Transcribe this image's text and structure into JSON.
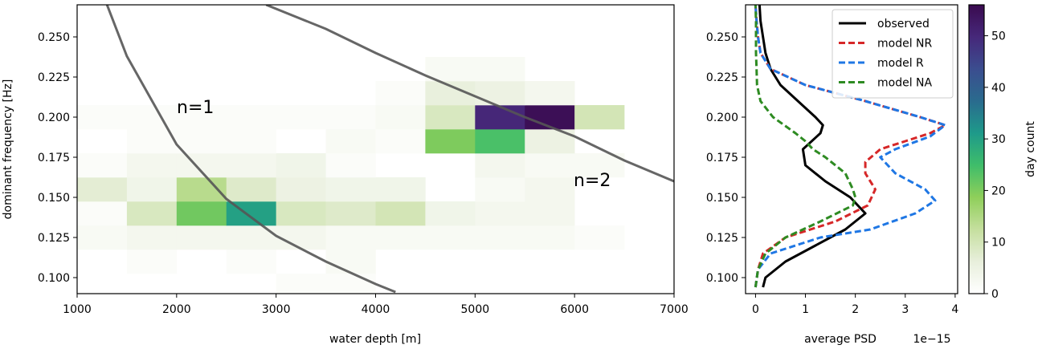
{
  "chart_data": [
    {
      "type": "heatmap",
      "xlabel": "water depth [m]",
      "ylabel": "dominant frequency [Hz]",
      "xlim": [
        1000,
        7000
      ],
      "ylim": [
        0.09,
        0.27
      ],
      "xticks": [
        1000,
        2000,
        3000,
        4000,
        5000,
        6000,
        7000
      ],
      "yticks": [
        0.1,
        0.125,
        0.15,
        0.175,
        0.2,
        0.225,
        0.25
      ],
      "xtick_labels": [
        "1000",
        "2000",
        "3000",
        "4000",
        "5000",
        "6000",
        "7000"
      ],
      "ytick_labels": [
        "0.100",
        "0.125",
        "0.150",
        "0.175",
        "0.200",
        "0.225",
        "0.250"
      ],
      "x_bin_edges": [
        1000,
        1500,
        2000,
        2500,
        3000,
        3500,
        4000,
        4500,
        5000,
        5500,
        6000,
        6500
      ],
      "y_bin_edges": [
        0.0875,
        0.1025,
        0.1175,
        0.1325,
        0.1475,
        0.1625,
        0.1775,
        0.1925,
        0.2075,
        0.2225,
        0.2375
      ],
      "counts": [
        [
          0,
          0,
          0,
          0,
          1,
          1,
          0,
          0,
          0,
          0,
          0
        ],
        [
          0,
          1,
          0,
          1,
          0,
          2,
          0,
          0,
          0,
          0,
          0
        ],
        [
          2,
          3,
          3,
          3,
          3,
          2,
          2,
          2,
          2,
          2,
          1
        ],
        [
          1,
          9,
          21,
          30,
          9,
          8,
          10,
          4,
          3,
          3,
          0
        ],
        [
          7,
          4,
          14,
          8,
          5,
          4,
          4,
          0,
          2,
          3,
          0
        ],
        [
          1,
          3,
          3,
          3,
          4,
          1,
          0,
          0,
          3,
          2,
          2
        ],
        [
          0,
          1,
          1,
          1,
          0,
          2,
          1,
          20,
          24,
          5,
          0
        ],
        [
          1,
          1,
          1,
          1,
          1,
          1,
          2,
          9,
          50,
          55,
          10
        ],
        [
          0,
          0,
          0,
          0,
          0,
          0,
          1,
          6,
          5,
          3,
          0
        ],
        [
          0,
          0,
          0,
          0,
          0,
          0,
          0,
          2,
          2,
          0,
          0
        ]
      ],
      "curves": [
        {
          "label": "n=1",
          "x": [
            1300,
            1500,
            2000,
            2500,
            3000,
            3500,
            4000,
            4200
          ],
          "y": [
            0.27,
            0.238,
            0.183,
            0.149,
            0.126,
            0.11,
            0.096,
            0.091
          ]
        },
        {
          "label": "n=2",
          "x": [
            2900,
            3500,
            4000,
            4500,
            5000,
            5500,
            6000,
            6500,
            7000
          ],
          "y": [
            0.27,
            0.255,
            0.24,
            0.226,
            0.213,
            0.2,
            0.188,
            0.173,
            0.16
          ]
        }
      ]
    },
    {
      "type": "line",
      "xlabel": "average PSD",
      "x_offset_label": "1e−15",
      "xlim": [
        -0.2,
        4.05
      ],
      "ylim": [
        0.09,
        0.27
      ],
      "xticks": [
        0,
        1,
        2,
        3,
        4
      ],
      "xtick_labels": [
        "0",
        "1",
        "2",
        "3",
        "4"
      ],
      "yticks": [
        0.1,
        0.125,
        0.15,
        0.175,
        0.2,
        0.225,
        0.25
      ],
      "ytick_labels": [
        "0.100",
        "0.125",
        "0.150",
        "0.175",
        "0.200",
        "0.225",
        "0.250"
      ],
      "legend_position": "top-right",
      "series": [
        {
          "name": "observed",
          "color": "#000000",
          "dash": "solid",
          "y": [
            0.094,
            0.1,
            0.11,
            0.12,
            0.13,
            0.14,
            0.15,
            0.16,
            0.17,
            0.18,
            0.19,
            0.195,
            0.2,
            0.21,
            0.22,
            0.23,
            0.24,
            0.25,
            0.26,
            0.27
          ],
          "x": [
            0.15,
            0.2,
            0.6,
            1.2,
            1.8,
            2.2,
            1.9,
            1.4,
            1.0,
            0.95,
            1.3,
            1.35,
            1.2,
            0.85,
            0.5,
            0.3,
            0.2,
            0.15,
            0.1,
            0.08
          ]
        },
        {
          "name": "model NR",
          "color": "#d62728",
          "dash": "dashed",
          "y": [
            0.094,
            0.105,
            0.115,
            0.125,
            0.135,
            0.145,
            0.155,
            0.165,
            0.172,
            0.18,
            0.185,
            0.19,
            0.195,
            0.2,
            0.21,
            0.22,
            0.23,
            0.24,
            0.25,
            0.26,
            0.27
          ],
          "x": [
            0.0,
            0.05,
            0.15,
            0.6,
            1.6,
            2.25,
            2.4,
            2.2,
            2.2,
            2.5,
            3.0,
            3.5,
            3.8,
            3.3,
            2.2,
            1.0,
            0.3,
            0.1,
            0.05,
            0.02,
            0.0
          ]
        },
        {
          "name": "model R",
          "color": "#1f77e4",
          "dash": "dashed",
          "y": [
            0.094,
            0.105,
            0.115,
            0.125,
            0.13,
            0.14,
            0.148,
            0.155,
            0.165,
            0.175,
            0.18,
            0.188,
            0.195,
            0.2,
            0.21,
            0.22,
            0.23,
            0.24,
            0.25,
            0.26,
            0.27
          ],
          "x": [
            0.0,
            0.05,
            0.3,
            1.3,
            2.3,
            3.2,
            3.6,
            3.4,
            2.8,
            2.5,
            2.8,
            3.5,
            3.8,
            3.3,
            2.2,
            1.0,
            0.3,
            0.1,
            0.05,
            0.02,
            0.0
          ]
        },
        {
          "name": "model NA",
          "color": "#2e8b22",
          "dash": "dashed",
          "y": [
            0.094,
            0.105,
            0.115,
            0.125,
            0.135,
            0.145,
            0.15,
            0.155,
            0.165,
            0.175,
            0.18,
            0.185,
            0.19,
            0.2,
            0.21,
            0.22,
            0.23,
            0.24,
            0.25,
            0.26,
            0.27
          ],
          "x": [
            0.0,
            0.05,
            0.2,
            0.6,
            1.3,
            1.95,
            2.0,
            1.95,
            1.8,
            1.4,
            1.15,
            1.0,
            0.8,
            0.35,
            0.1,
            0.03,
            0.02,
            0.01,
            0.01,
            0.01,
            0.0
          ]
        }
      ]
    }
  ],
  "colorbar": {
    "label": "day count",
    "min": 0,
    "max": 56,
    "ticks": [
      0,
      10,
      20,
      30,
      40,
      50
    ],
    "tick_labels": [
      "0",
      "10",
      "20",
      "30",
      "40",
      "50"
    ],
    "colormap": [
      "#ffffff",
      "#e8efdc",
      "#c5df9e",
      "#8fcf5a",
      "#3fbd6a",
      "#1e9a8a",
      "#2a6b8e",
      "#3b4d8f",
      "#46287a",
      "#3a0a4f"
    ]
  }
}
